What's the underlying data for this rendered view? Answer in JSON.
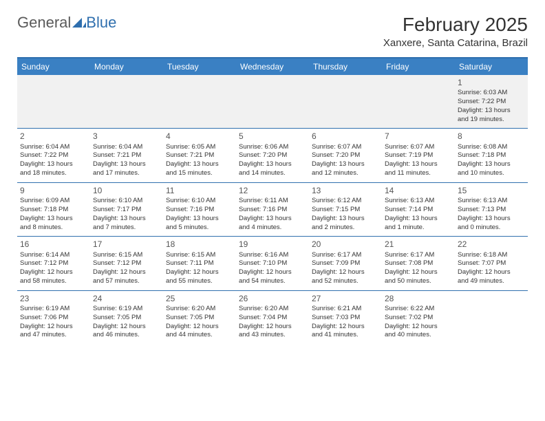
{
  "logo": {
    "text1": "General",
    "text2": "Blue"
  },
  "title": "February 2025",
  "location": "Xanxere, Santa Catarina, Brazil",
  "colors": {
    "header_bg": "#3a80c3",
    "header_text": "#ffffff",
    "divider": "#2f6fae",
    "row_alt_bg": "#f1f1f1",
    "text": "#333333",
    "logo_gray": "#5a5a5a",
    "logo_blue": "#2f6fae"
  },
  "daynames": [
    "Sunday",
    "Monday",
    "Tuesday",
    "Wednesday",
    "Thursday",
    "Friday",
    "Saturday"
  ],
  "weeks": [
    [
      null,
      null,
      null,
      null,
      null,
      null,
      {
        "n": "1",
        "sr": "Sunrise: 6:03 AM",
        "ss": "Sunset: 7:22 PM",
        "d1": "Daylight: 13 hours",
        "d2": "and 19 minutes."
      }
    ],
    [
      {
        "n": "2",
        "sr": "Sunrise: 6:04 AM",
        "ss": "Sunset: 7:22 PM",
        "d1": "Daylight: 13 hours",
        "d2": "and 18 minutes."
      },
      {
        "n": "3",
        "sr": "Sunrise: 6:04 AM",
        "ss": "Sunset: 7:21 PM",
        "d1": "Daylight: 13 hours",
        "d2": "and 17 minutes."
      },
      {
        "n": "4",
        "sr": "Sunrise: 6:05 AM",
        "ss": "Sunset: 7:21 PM",
        "d1": "Daylight: 13 hours",
        "d2": "and 15 minutes."
      },
      {
        "n": "5",
        "sr": "Sunrise: 6:06 AM",
        "ss": "Sunset: 7:20 PM",
        "d1": "Daylight: 13 hours",
        "d2": "and 14 minutes."
      },
      {
        "n": "6",
        "sr": "Sunrise: 6:07 AM",
        "ss": "Sunset: 7:20 PM",
        "d1": "Daylight: 13 hours",
        "d2": "and 12 minutes."
      },
      {
        "n": "7",
        "sr": "Sunrise: 6:07 AM",
        "ss": "Sunset: 7:19 PM",
        "d1": "Daylight: 13 hours",
        "d2": "and 11 minutes."
      },
      {
        "n": "8",
        "sr": "Sunrise: 6:08 AM",
        "ss": "Sunset: 7:18 PM",
        "d1": "Daylight: 13 hours",
        "d2": "and 10 minutes."
      }
    ],
    [
      {
        "n": "9",
        "sr": "Sunrise: 6:09 AM",
        "ss": "Sunset: 7:18 PM",
        "d1": "Daylight: 13 hours",
        "d2": "and 8 minutes."
      },
      {
        "n": "10",
        "sr": "Sunrise: 6:10 AM",
        "ss": "Sunset: 7:17 PM",
        "d1": "Daylight: 13 hours",
        "d2": "and 7 minutes."
      },
      {
        "n": "11",
        "sr": "Sunrise: 6:10 AM",
        "ss": "Sunset: 7:16 PM",
        "d1": "Daylight: 13 hours",
        "d2": "and 5 minutes."
      },
      {
        "n": "12",
        "sr": "Sunrise: 6:11 AM",
        "ss": "Sunset: 7:16 PM",
        "d1": "Daylight: 13 hours",
        "d2": "and 4 minutes."
      },
      {
        "n": "13",
        "sr": "Sunrise: 6:12 AM",
        "ss": "Sunset: 7:15 PM",
        "d1": "Daylight: 13 hours",
        "d2": "and 2 minutes."
      },
      {
        "n": "14",
        "sr": "Sunrise: 6:13 AM",
        "ss": "Sunset: 7:14 PM",
        "d1": "Daylight: 13 hours",
        "d2": "and 1 minute."
      },
      {
        "n": "15",
        "sr": "Sunrise: 6:13 AM",
        "ss": "Sunset: 7:13 PM",
        "d1": "Daylight: 13 hours",
        "d2": "and 0 minutes."
      }
    ],
    [
      {
        "n": "16",
        "sr": "Sunrise: 6:14 AM",
        "ss": "Sunset: 7:12 PM",
        "d1": "Daylight: 12 hours",
        "d2": "and 58 minutes."
      },
      {
        "n": "17",
        "sr": "Sunrise: 6:15 AM",
        "ss": "Sunset: 7:12 PM",
        "d1": "Daylight: 12 hours",
        "d2": "and 57 minutes."
      },
      {
        "n": "18",
        "sr": "Sunrise: 6:15 AM",
        "ss": "Sunset: 7:11 PM",
        "d1": "Daylight: 12 hours",
        "d2": "and 55 minutes."
      },
      {
        "n": "19",
        "sr": "Sunrise: 6:16 AM",
        "ss": "Sunset: 7:10 PM",
        "d1": "Daylight: 12 hours",
        "d2": "and 54 minutes."
      },
      {
        "n": "20",
        "sr": "Sunrise: 6:17 AM",
        "ss": "Sunset: 7:09 PM",
        "d1": "Daylight: 12 hours",
        "d2": "and 52 minutes."
      },
      {
        "n": "21",
        "sr": "Sunrise: 6:17 AM",
        "ss": "Sunset: 7:08 PM",
        "d1": "Daylight: 12 hours",
        "d2": "and 50 minutes."
      },
      {
        "n": "22",
        "sr": "Sunrise: 6:18 AM",
        "ss": "Sunset: 7:07 PM",
        "d1": "Daylight: 12 hours",
        "d2": "and 49 minutes."
      }
    ],
    [
      {
        "n": "23",
        "sr": "Sunrise: 6:19 AM",
        "ss": "Sunset: 7:06 PM",
        "d1": "Daylight: 12 hours",
        "d2": "and 47 minutes."
      },
      {
        "n": "24",
        "sr": "Sunrise: 6:19 AM",
        "ss": "Sunset: 7:05 PM",
        "d1": "Daylight: 12 hours",
        "d2": "and 46 minutes."
      },
      {
        "n": "25",
        "sr": "Sunrise: 6:20 AM",
        "ss": "Sunset: 7:05 PM",
        "d1": "Daylight: 12 hours",
        "d2": "and 44 minutes."
      },
      {
        "n": "26",
        "sr": "Sunrise: 6:20 AM",
        "ss": "Sunset: 7:04 PM",
        "d1": "Daylight: 12 hours",
        "d2": "and 43 minutes."
      },
      {
        "n": "27",
        "sr": "Sunrise: 6:21 AM",
        "ss": "Sunset: 7:03 PM",
        "d1": "Daylight: 12 hours",
        "d2": "and 41 minutes."
      },
      {
        "n": "28",
        "sr": "Sunrise: 6:22 AM",
        "ss": "Sunset: 7:02 PM",
        "d1": "Daylight: 12 hours",
        "d2": "and 40 minutes."
      },
      null
    ]
  ]
}
